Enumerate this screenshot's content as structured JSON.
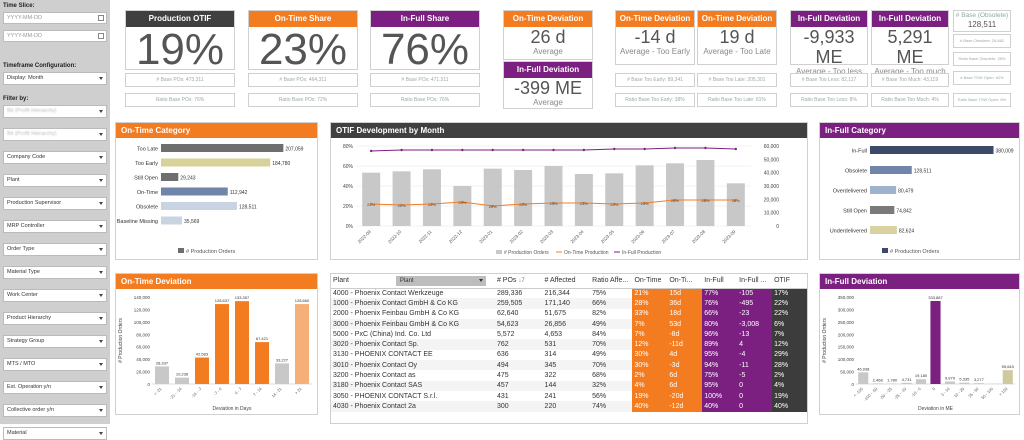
{
  "sidebar": {
    "time_slice_label": "Time Slice:",
    "date_from_placeholder": "YYYY-MM-DD",
    "date_to_placeholder": "YYYY-MM-DD",
    "timeframe_label": "Timeframe Configuration:",
    "display_value": "Display: Month",
    "filter_label": "Filter by:",
    "filters": [
      "Bit (Profit Hierarchy)",
      "Bit (Profit Hierarchy)",
      "Company Code",
      "Plant",
      "Production Supervisor",
      "MRP Controller",
      "Order Type",
      "Material Type",
      "Work Center",
      "Product Hierarchy",
      "Strategy Group",
      "MTS / MTO",
      "Ext. Operation y/n",
      "Collective order y/n",
      "Material"
    ]
  },
  "kpis": {
    "otif": {
      "title": "Production OTIF",
      "value": "19%",
      "sub1": "# Base POs: 473,311",
      "sub2": "Ratio Base POs: 76%"
    },
    "on_time_share": {
      "title": "On-Time Share",
      "value": "23%",
      "sub1": "# Base POs: 464,311",
      "sub2": "Ratio Base POs: 72%"
    },
    "in_full_share": {
      "title": "In-Full Share",
      "value": "76%",
      "sub1": "# Base POs: 471,511",
      "sub2": "Ratio Base POs: 76%"
    },
    "on_time_dev": {
      "title": "On-Time Deviation",
      "value": "26 d",
      "sub": "Average"
    },
    "in_full_dev": {
      "title": "In-Full Deviation",
      "value": "-399 ME",
      "sub": "Average"
    },
    "early": {
      "title": "On-Time Deviation",
      "value": "-14 d",
      "sub": "Average - Too Early",
      "m1": "# Base Too Early: 89,341",
      "m2": "Ratio Base Too Early: 38%"
    },
    "late": {
      "title": "On-Time Deviation",
      "value": "19 d",
      "sub": "Average - Too Late",
      "m1": "# Base Too Late: 205,301",
      "m2": "Ratio Base Too Late: 61%"
    },
    "less": {
      "title": "In-Full Deviation",
      "value": "-9,933 ME",
      "sub": "Average - Too less",
      "m1": "# Base Too Less: 82,117",
      "m2": "Ratio Base Too Less: 8%"
    },
    "much": {
      "title": "In-Full Deviation",
      "value": "5,291 ME",
      "sub": "Average - Too much",
      "m1": "# Base Too Much: 43,119",
      "m2": "Ratio Base Too Much: 4%"
    },
    "obsolete": {
      "title": "# Base (Obsolete)",
      "value": "128,511",
      "m1": "# Base Obsolete: 26,882",
      "m2": "Ratio Base Obsolete: 28%",
      "m3": "# Base TSW Open: 62%",
      "m4": "Ratio Base TSW Open: 8%"
    }
  },
  "on_time_category": {
    "title": "On-Time Category",
    "legend": "# Production Orders",
    "colors": {
      "dark": "#6e6e6e",
      "khaki": "#d8d29a",
      "blue": "#6f86a8",
      "pale": "#c9d4e2"
    },
    "chart_data": {
      "type": "bar",
      "categories": [
        "Too Late",
        "Too Early",
        "Still Open",
        "On-Time",
        "Obsolete",
        "Baseline Missing"
      ],
      "values": [
        207059,
        184780,
        29243,
        112942,
        128511,
        35569
      ],
      "labels": [
        "207,059",
        "184,780",
        "29,243",
        "112,942",
        "128,511",
        "35,569"
      ],
      "xlim": [
        0,
        220000
      ]
    }
  },
  "otif_dev": {
    "title": "OTIF Development by Month",
    "legend": [
      "# Production Orders",
      "On-Time Production",
      "In-Full Production"
    ],
    "chart_data": {
      "type": "bar",
      "categories": [
        "2022-09",
        "2022-10",
        "2022-11",
        "2022-12",
        "2023-01",
        "2023-02",
        "2023-03",
        "2023-04",
        "2023-05",
        "2023-06",
        "2023-07",
        "2023-08",
        "2023-09"
      ],
      "bars": [
        40000,
        41000,
        42500,
        30000,
        43000,
        42000,
        45000,
        39000,
        39500,
        45500,
        47000,
        49500,
        32000
      ],
      "on_time": [
        22,
        21,
        22,
        24,
        20,
        22,
        23,
        23,
        22,
        23,
        26,
        26,
        26
      ],
      "in_full": [
        75,
        76,
        76,
        76,
        76,
        76,
        76,
        76,
        77,
        77,
        78,
        78,
        77
      ],
      "on_time_labels": [
        "22%",
        "21%",
        "22%",
        "24%",
        "20%",
        "22%",
        "23%",
        "23%",
        "22%",
        "23%",
        "26%",
        "26%",
        "26%"
      ],
      "y_left": [
        0,
        80
      ],
      "y_right": [
        0,
        60000
      ],
      "left_ticks": [
        "0%",
        "20%",
        "40%",
        "60%",
        "80%"
      ],
      "right_ticks": [
        "0",
        "10,000",
        "20,000",
        "30,000",
        "40,000",
        "50,000",
        "60,000"
      ]
    }
  },
  "in_full_category": {
    "title": "In-Full Category",
    "legend": "# Production Orders",
    "chart_data": {
      "type": "bar",
      "categories": [
        "In-Full",
        "Obsolete",
        "Overdelivered",
        "Still Open",
        "Underdelivered"
      ],
      "values": [
        380009,
        128511,
        80479,
        74842,
        82624
      ],
      "labels": [
        "380,009",
        "128,511",
        "80,479",
        "74,842",
        "82,624"
      ],
      "xlim": [
        0,
        400000
      ]
    }
  },
  "on_time_deviation": {
    "title": "On-Time Deviation",
    "ylabel": "# Production Orders",
    "xlabel": "Deviation in Days",
    "chart_data": {
      "type": "bar",
      "categories": [
        "< -21",
        "-21 - -14",
        "-14 - -7",
        "-7 - 0",
        "0 - 7",
        "7 - 14",
        "14 - 21",
        "> 21"
      ],
      "values": [
        28337,
        10238,
        42583,
        128637,
        133357,
        67421,
        33227,
        128660
      ],
      "labels": [
        "28,337",
        "10,238",
        "42,583",
        "128,637",
        "133,357",
        "67,421",
        "33,227",
        "128,660"
      ],
      "ylim": [
        0,
        140000
      ],
      "ticks": [
        "0",
        "20,000",
        "40,000",
        "60,000",
        "80,000",
        "100,000",
        "120,000",
        "140,000"
      ]
    }
  },
  "in_full_deviation": {
    "title": "In-Full Deviation",
    "ylabel": "# Production Orders",
    "xlabel": "Deviation in ME",
    "chart_data": {
      "type": "bar",
      "categories": [
        "< -100",
        "-100 - -50",
        "-50 - -25",
        "-25 - -10",
        "-10 - 0",
        "0",
        "0 - 10",
        "10 - 25",
        "25 - 50",
        "50 - 100",
        "> 100"
      ],
      "values": [
        46938,
        2468,
        1780,
        4731,
        19180,
        333887,
        9979,
        5335,
        3277,
        1000,
        55643
      ],
      "labels": [
        "46,938",
        "2,468",
        "1,780",
        "4,731",
        "19,180",
        "333,887",
        "9,979",
        "5,335",
        "3,277",
        "",
        "55,643"
      ],
      "ylim": [
        0,
        350000
      ],
      "ticks": [
        "0",
        "50,000",
        "100,000",
        "150,000",
        "200,000",
        "250,000",
        "300,000",
        "350,000"
      ]
    }
  },
  "table": {
    "plant_col": "Plant",
    "plant_dd": "Plant",
    "headers": [
      "# POs",
      "# Affected",
      "Ratio Affe...",
      "On-Time",
      "On-Ti...",
      "In-Full",
      "In-Full ...",
      "OTIF"
    ],
    "sort_icon": "↓7",
    "rows": [
      [
        "4000 - Phoenix Contact Werkzeuge",
        "289,336",
        "216,344",
        "75%",
        "21%",
        "15d",
        "77%",
        "-105",
        "17%"
      ],
      [
        "1000 - Phoenix Contact GmbH & Co KG",
        "259,505",
        "171,140",
        "66%",
        "28%",
        "36d",
        "76%",
        "-495",
        "22%"
      ],
      [
        "2000 - Phoenix Feinbau GmbH & Co KG",
        "62,640",
        "51,675",
        "82%",
        "33%",
        "18d",
        "66%",
        "-23",
        "22%"
      ],
      [
        "3000 - Phoenix Feinbau GmbH & Co KG",
        "54,623",
        "26,856",
        "49%",
        "7%",
        "53d",
        "80%",
        "-3,008",
        "6%"
      ],
      [
        "5000 - PxC (China) Ind. Co. Ltd",
        "5,572",
        "4,653",
        "84%",
        "7%",
        "-8d",
        "96%",
        "-13",
        "7%"
      ],
      [
        "3020 - Phoenix Contact Sp.",
        "762",
        "531",
        "70%",
        "12%",
        "-11d",
        "89%",
        "4",
        "12%"
      ],
      [
        "3130 - PHOENIX CONTACT EE",
        "636",
        "314",
        "49%",
        "30%",
        "4d",
        "95%",
        "-4",
        "29%"
      ],
      [
        "3010 - Phoenix Contact Oy",
        "494",
        "345",
        "70%",
        "30%",
        "-3d",
        "94%",
        "-11",
        "28%"
      ],
      [
        "3200 - Phoenix Contact as",
        "475",
        "322",
        "68%",
        "2%",
        "6d",
        "75%",
        "-5",
        "2%"
      ],
      [
        "3180 - Phoenix Contact SAS",
        "457",
        "144",
        "32%",
        "4%",
        "6d",
        "95%",
        "0",
        "4%"
      ],
      [
        "3050 - PHOENIX CONTACT S.r.l.",
        "431",
        "241",
        "56%",
        "19%",
        "-20d",
        "100%",
        "0",
        "19%"
      ],
      [
        "4030 - Phoenix Contact 2a",
        "300",
        "220",
        "74%",
        "40%",
        "-12d",
        "40%",
        "0",
        "40%"
      ]
    ]
  }
}
